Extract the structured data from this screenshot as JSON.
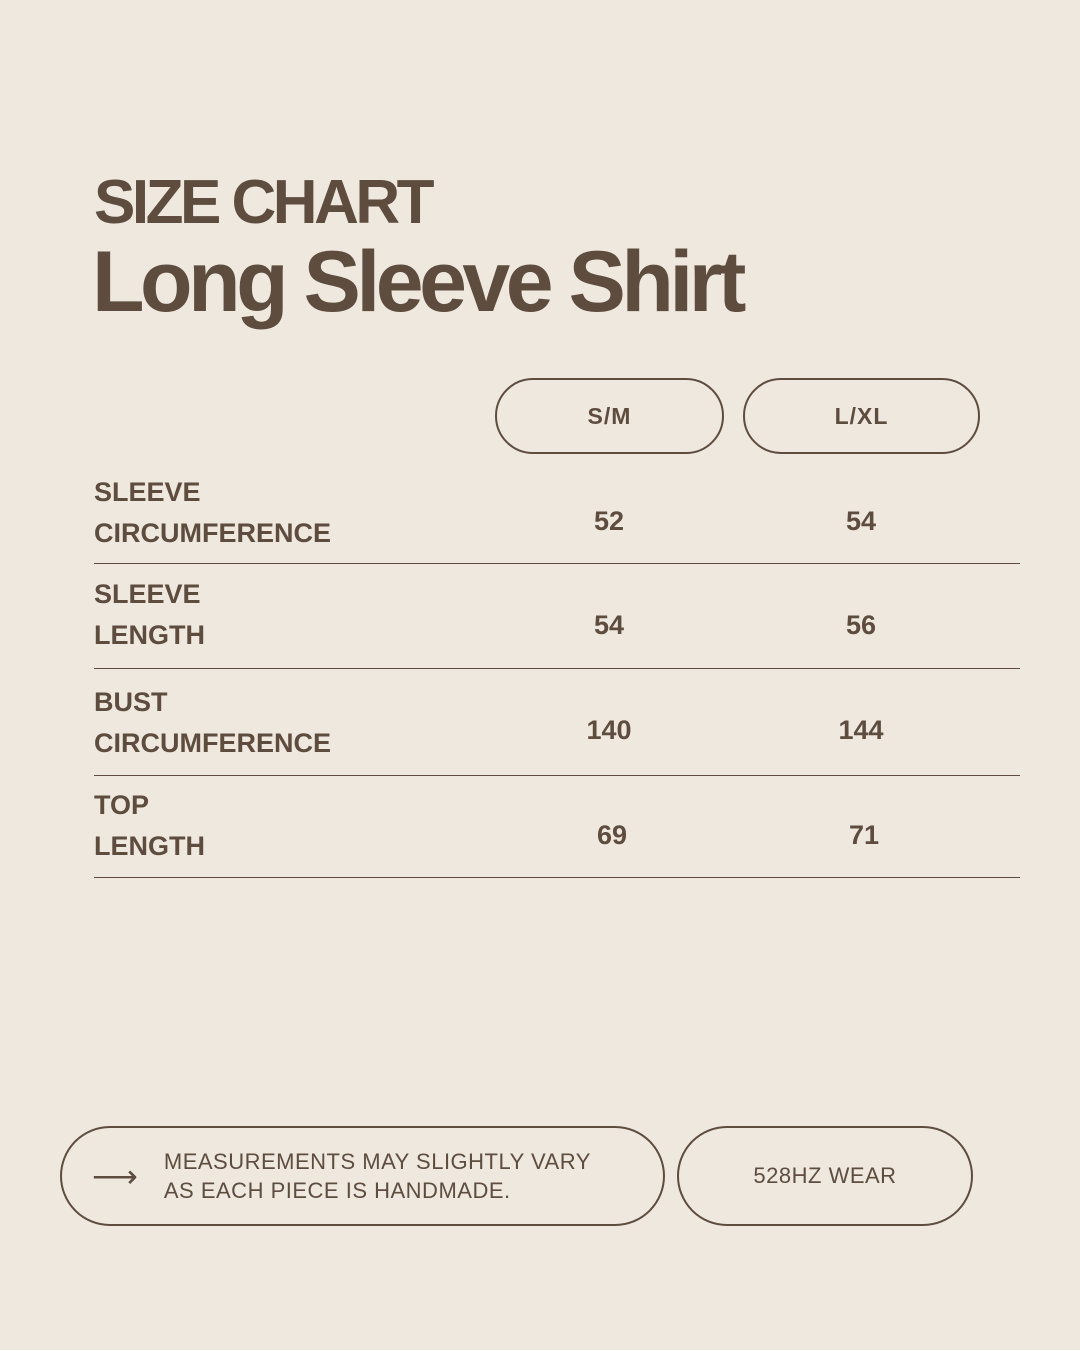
{
  "header": {
    "kicker": "SIZE CHART",
    "title": "Long Sleeve Shirt"
  },
  "colors": {
    "background": "#EEE8DF",
    "text": "#5E4D3E"
  },
  "table": {
    "columns": [
      "S/M",
      "L/XL"
    ],
    "rows": [
      {
        "label_line1": "SLEEVE",
        "label_line2": "CIRCUMFERENCE",
        "values": [
          "52",
          "54"
        ]
      },
      {
        "label_line1": "SLEEVE",
        "label_line2": "LENGTH",
        "values": [
          "54",
          "56"
        ]
      },
      {
        "label_line1": "BUST",
        "label_line2": "CIRCUMFERENCE",
        "values": [
          "140",
          "144"
        ]
      },
      {
        "label_line1": "TOP",
        "label_line2": "LENGTH",
        "values": [
          "69",
          "71"
        ]
      }
    ]
  },
  "footer": {
    "arrow_icon": "arrow-right-icon",
    "note_line1": "MEASUREMENTS MAY SLIGHTLY VARY",
    "note_line2": "AS EACH PIECE IS HANDMADE.",
    "brand": "528HZ WEAR"
  }
}
